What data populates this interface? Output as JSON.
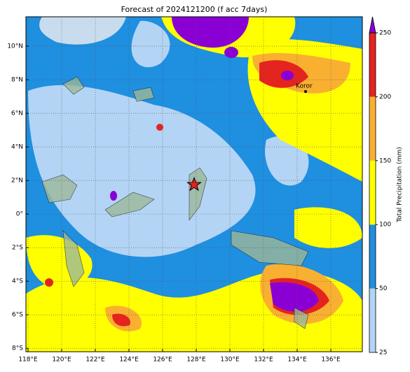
{
  "chart_data": {
    "type": "map",
    "title": "Forecast of 2024121200 (f acc 7days)",
    "xlim": [
      117.875,
      137.875
    ],
    "ylim": [
      -8.2,
      11.75
    ],
    "xticks": [
      {
        "value": 118,
        "label": "118°E"
      },
      {
        "value": 120,
        "label": "120°E"
      },
      {
        "value": 122,
        "label": "122°E"
      },
      {
        "value": 124,
        "label": "124°E"
      },
      {
        "value": 126,
        "label": "126°E"
      },
      {
        "value": 128,
        "label": "128°E"
      },
      {
        "value": 130,
        "label": "130°E"
      },
      {
        "value": 132,
        "label": "132°E"
      },
      {
        "value": 134,
        "label": "134°E"
      },
      {
        "value": 136,
        "label": "136°E"
      }
    ],
    "yticks": [
      {
        "value": -8,
        "label": "8°S"
      },
      {
        "value": -6,
        "label": "6°S"
      },
      {
        "value": -4,
        "label": "4°S"
      },
      {
        "value": -2,
        "label": "2°S"
      },
      {
        "value": 0,
        "label": "0°"
      },
      {
        "value": 2,
        "label": "2°N"
      },
      {
        "value": 4,
        "label": "4°N"
      },
      {
        "value": 6,
        "label": "6°N"
      },
      {
        "value": 8,
        "label": "8°N"
      },
      {
        "value": 10,
        "label": "10°N"
      }
    ],
    "grid": true,
    "colorbar": {
      "label": "Total Precipitation (mm)",
      "ticks": [
        25,
        50,
        100,
        150,
        200,
        250
      ],
      "colors": [
        "#b3d4f5",
        "#1f8fe0",
        "#ffff00",
        "#f9b031",
        "#e5231f"
      ],
      "extend_color": "#8a00d4"
    },
    "place": {
      "name": "Koror",
      "lon": 134.5,
      "lat": 7.3
    },
    "marker": {
      "lon": 127.875,
      "lat": 1.75
    }
  }
}
